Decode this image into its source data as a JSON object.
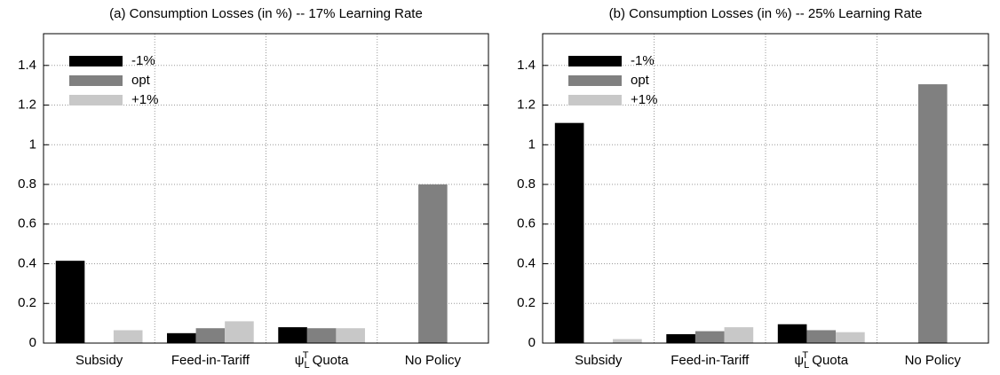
{
  "chart_data": [
    {
      "type": "bar",
      "title": "(a) Consumption Losses (in %) -- 17% Learning Rate",
      "categories": [
        "Subsidy",
        "Feed-in-Tariff",
        "ψLT Quota",
        "No Policy"
      ],
      "series": [
        {
          "name": "-1%",
          "color": "#000000",
          "values": [
            0.415,
            0.05,
            0.08,
            null
          ]
        },
        {
          "name": "opt",
          "color": "#808080",
          "values": [
            null,
            0.075,
            0.075,
            0.8
          ]
        },
        {
          "name": "+1%",
          "color": "#c8c8c8",
          "values": [
            0.065,
            0.11,
            0.075,
            null
          ]
        }
      ],
      "ylim": [
        0,
        1.56
      ],
      "yticks": [
        0,
        0.2,
        0.4,
        0.6,
        0.8,
        1,
        1.2,
        1.4
      ],
      "grid": true,
      "legend": "upper left"
    },
    {
      "type": "bar",
      "title": "(b) Consumption Losses (in %) -- 25% Learning Rate",
      "categories": [
        "Subsidy",
        "Feed-in-Tariff",
        "ψLT Quota",
        "No Policy"
      ],
      "series": [
        {
          "name": "-1%",
          "color": "#000000",
          "values": [
            1.11,
            0.045,
            0.095,
            null
          ]
        },
        {
          "name": "opt",
          "color": "#808080",
          "values": [
            null,
            0.06,
            0.065,
            1.305
          ]
        },
        {
          "name": "+1%",
          "color": "#c8c8c8",
          "values": [
            0.02,
            0.08,
            0.055,
            null
          ]
        }
      ],
      "ylim": [
        0,
        1.56
      ],
      "yticks": [
        0,
        0.2,
        0.4,
        0.6,
        0.8,
        1,
        1.2,
        1.4
      ],
      "grid": true,
      "legend": "upper left"
    }
  ]
}
